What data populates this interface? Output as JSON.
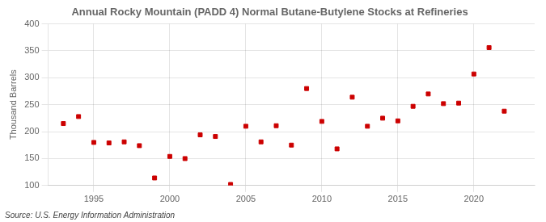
{
  "chart_data": {
    "type": "scatter",
    "title": "Annual Rocky Mountain (PADD 4) Normal Butane-Butylene Stocks at Refineries",
    "ylabel": "Thousand Barrels",
    "annotation": "Source: U.S. Energy Information Administration",
    "x": [
      1993,
      1994,
      1995,
      1996,
      1997,
      1998,
      1999,
      2000,
      2001,
      2002,
      2003,
      2004,
      2005,
      2006,
      2007,
      2008,
      2009,
      2010,
      2011,
      2012,
      2013,
      2014,
      2015,
      2016,
      2017,
      2018,
      2019,
      2020,
      2021,
      2022
    ],
    "values": [
      215,
      228,
      180,
      179,
      181,
      174,
      114,
      154,
      150,
      194,
      191,
      102,
      210,
      181,
      211,
      175,
      280,
      219,
      168,
      264,
      210,
      225,
      220,
      247,
      270,
      252,
      253,
      307,
      356,
      238
    ],
    "color": "#cc0000",
    "marker": "square",
    "xlim": [
      1992,
      2024
    ],
    "xticks": [
      1995,
      2000,
      2005,
      2010,
      2015,
      2020
    ],
    "ylim": [
      100,
      400
    ],
    "yticks": [
      100,
      150,
      200,
      250,
      300,
      350,
      400
    ],
    "grid": true
  }
}
